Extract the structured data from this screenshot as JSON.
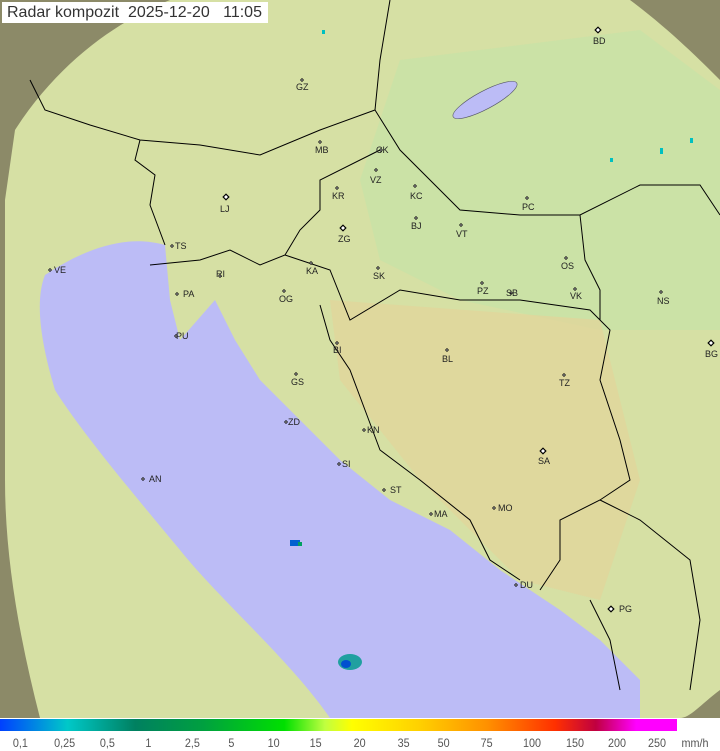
{
  "title": {
    "label": "Radar kompozit",
    "date": "2025-12-20",
    "time": "11:05"
  },
  "legend": {
    "unit": "mm/h",
    "values": [
      "0,1",
      "0,25",
      "0,5",
      "1",
      "2,5",
      "5",
      "10",
      "15",
      "20",
      "35",
      "50",
      "75",
      "100",
      "150",
      "200",
      "250"
    ]
  },
  "colors": {
    "sea": "#bcbcf6",
    "land": "#d8e4a8",
    "outside": "#8a8a6a",
    "border": "#000000"
  },
  "cities": [
    {
      "code": "GZ"
    },
    {
      "code": "BD"
    },
    {
      "code": "MB"
    },
    {
      "code": "CK"
    },
    {
      "code": "VZ"
    },
    {
      "code": "KR"
    },
    {
      "code": "KC"
    },
    {
      "code": "LJ"
    },
    {
      "code": "PC"
    },
    {
      "code": "ZG"
    },
    {
      "code": "BJ"
    },
    {
      "code": "VT"
    },
    {
      "code": "TS"
    },
    {
      "code": "VE"
    },
    {
      "code": "RI"
    },
    {
      "code": "KA"
    },
    {
      "code": "SK"
    },
    {
      "code": "OS"
    },
    {
      "code": "PA"
    },
    {
      "code": "OG"
    },
    {
      "code": "PZ"
    },
    {
      "code": "SB"
    },
    {
      "code": "VK"
    },
    {
      "code": "NS"
    },
    {
      "code": "PU"
    },
    {
      "code": "BG"
    },
    {
      "code": "BI"
    },
    {
      "code": "BL"
    },
    {
      "code": "GS"
    },
    {
      "code": "TZ"
    },
    {
      "code": "ZD"
    },
    {
      "code": "KN"
    },
    {
      "code": "SA"
    },
    {
      "code": "SI"
    },
    {
      "code": "AN"
    },
    {
      "code": "ST"
    },
    {
      "code": "MO"
    },
    {
      "code": "MA"
    },
    {
      "code": "DU"
    },
    {
      "code": "PG"
    }
  ]
}
